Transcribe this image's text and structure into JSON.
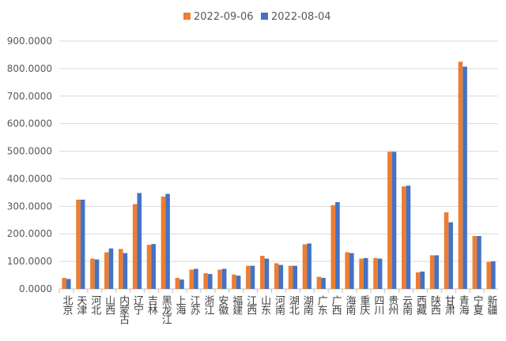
{
  "chart_data": {
    "type": "bar",
    "title": "",
    "xlabel": "",
    "ylabel": "",
    "ylim": [
      0,
      900
    ],
    "yticks": [
      "0.0000",
      "100.0000",
      "200.0000",
      "300.0000",
      "400.0000",
      "500.0000",
      "600.0000",
      "700.0000",
      "800.0000",
      "900.0000"
    ],
    "grid": true,
    "legend_position": "top-center",
    "categories": [
      "北京",
      "天津",
      "河北",
      "山西",
      "内蒙古",
      "辽宁",
      "吉林",
      "黑龙江",
      "上海",
      "江苏",
      "浙江",
      "安徽",
      "福建",
      "江西",
      "山东",
      "河南",
      "湖北",
      "湖南",
      "广东",
      "广西",
      "海南",
      "重庆",
      "四川",
      "贵州",
      "云南",
      "西藏",
      "陕西",
      "甘肃",
      "青海",
      "宁夏",
      "新疆"
    ],
    "series": [
      {
        "name": "2022-09-06",
        "color": "#ED7D31",
        "values": [
          40,
          324,
          110,
          133,
          145,
          308,
          160,
          335,
          40,
          70,
          57,
          70,
          52,
          84,
          120,
          93,
          84,
          162,
          44,
          304,
          133,
          110,
          112,
          498,
          372,
          60,
          122,
          278,
          825,
          192,
          98
        ]
      },
      {
        "name": "2022-08-04",
        "color": "#4472C4",
        "values": [
          36,
          324,
          107,
          147,
          130,
          348,
          163,
          345,
          34,
          73,
          54,
          73,
          48,
          84,
          110,
          87,
          84,
          165,
          40,
          315,
          130,
          112,
          110,
          498,
          375,
          63,
          122,
          242,
          807,
          192,
          100
        ]
      }
    ]
  }
}
